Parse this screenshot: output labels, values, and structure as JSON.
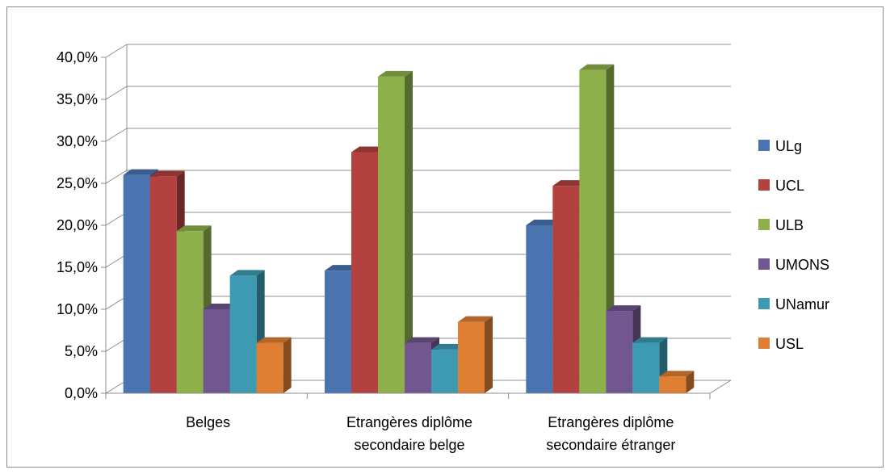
{
  "chart_data": {
    "type": "bar",
    "categories": [
      "Belges",
      "Etrangères diplôme secondaire belge",
      "Etrangères diplôme secondaire étranger"
    ],
    "category_lines": [
      [
        "Belges"
      ],
      [
        "Etrangères diplôme",
        "secondaire belge"
      ],
      [
        "Etrangères diplôme",
        "secondaire étranger"
      ]
    ],
    "series": [
      {
        "name": "ULg",
        "color": "#4a74b0",
        "values": [
          26.0,
          14.6,
          20.0
        ]
      },
      {
        "name": "UCL",
        "color": "#b2413f",
        "values": [
          25.8,
          28.7,
          24.7
        ]
      },
      {
        "name": "ULB",
        "color": "#8eb04b",
        "values": [
          19.3,
          37.7,
          38.5
        ]
      },
      {
        "name": "UMONS",
        "color": "#71568f",
        "values": [
          10.0,
          6.0,
          9.8
        ]
      },
      {
        "name": "UNamur",
        "color": "#3d9ab2",
        "values": [
          14.0,
          5.2,
          6.0
        ]
      },
      {
        "name": "USL",
        "color": "#e07f33",
        "values": [
          6.0,
          8.5,
          2.0
        ]
      }
    ],
    "yticks": [
      "0,0%",
      "5,0%",
      "10,0%",
      "15,0%",
      "20,0%",
      "25,0%",
      "30,0%",
      "35,0%",
      "40,0%"
    ],
    "ylim": [
      0,
      40
    ],
    "grid": true,
    "legend_position": "right",
    "title": "",
    "xlabel": "",
    "ylabel": ""
  }
}
